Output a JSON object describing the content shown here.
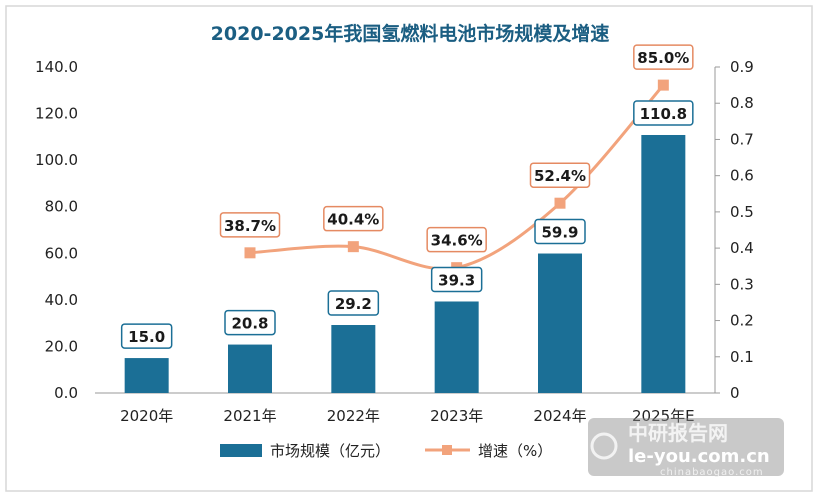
{
  "chart_data": {
    "type": "bar+line",
    "title": "2020-2025年我国氢燃料电池市场规模及增速",
    "categories": [
      "2020年",
      "2021年",
      "2022年",
      "2023年",
      "2024年",
      "2025年E"
    ],
    "series": [
      {
        "name": "市场规模（亿元）",
        "type": "bar",
        "axis": "left",
        "color": "#1b6f96",
        "values": [
          15.0,
          20.8,
          29.2,
          39.3,
          59.9,
          110.8
        ],
        "labels": [
          "15.0",
          "20.8",
          "29.2",
          "39.3",
          "59.9",
          "110.8"
        ]
      },
      {
        "name": "增速（%）",
        "type": "line",
        "axis": "right",
        "color": "#f2a37c",
        "values": [
          null,
          0.387,
          0.404,
          0.346,
          0.524,
          0.85
        ],
        "labels": [
          "",
          "38.7%",
          "40.4%",
          "34.6%",
          "52.4%",
          "85.0%"
        ]
      }
    ],
    "y_left": {
      "min": 0,
      "max": 140,
      "ticks": [
        "0.0",
        "20.0",
        "40.0",
        "60.0",
        "80.0",
        "100.0",
        "120.0",
        "140.0"
      ]
    },
    "y_right": {
      "min": 0,
      "max": 0.9,
      "ticks": [
        "0",
        "0.1",
        "0.2",
        "0.3",
        "0.4",
        "0.5",
        "0.6",
        "0.7",
        "0.8",
        "0.9"
      ]
    },
    "grid": false,
    "legend_placement": "bottom"
  },
  "watermark": {
    "line1": "中研报告网",
    "line2": "le-you.com.cn",
    "line3": "chinabaogao.com"
  },
  "colors": {
    "title": "#1b5e82",
    "bar": "#1b6f96",
    "line": "#f2a37c",
    "label_border": "#1b6f96",
    "pct_border": "#e58a62",
    "frame": "#d7d7d7"
  }
}
